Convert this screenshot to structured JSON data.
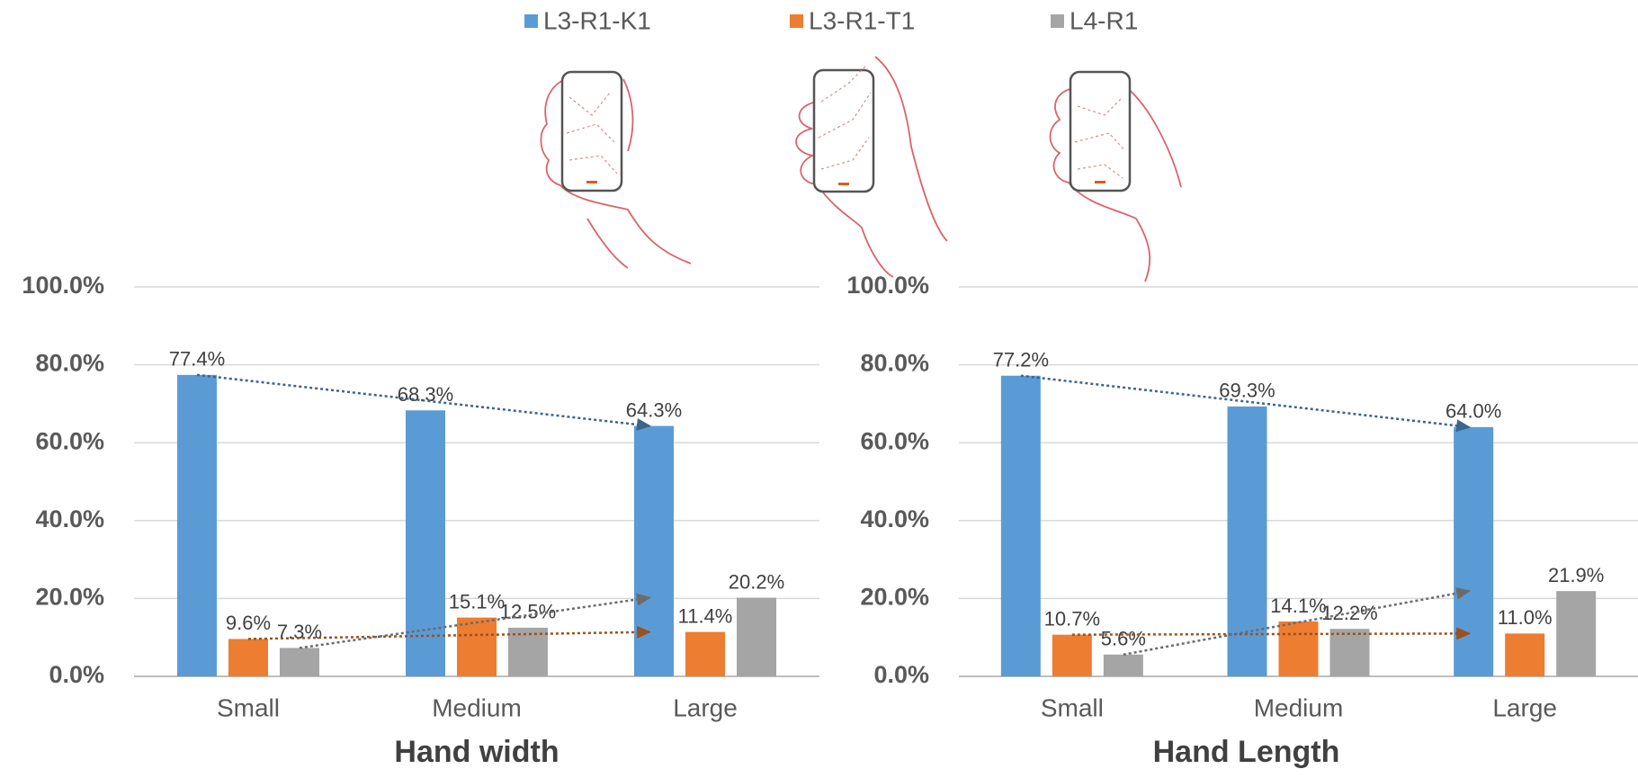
{
  "chart_data": [
    {
      "type": "bar",
      "x_label": "Hand width",
      "categories": [
        "Small",
        "Medium",
        "Large"
      ],
      "ylim": [
        0,
        100
      ],
      "yticks": [
        {
          "value": 0,
          "label": "0.0%"
        },
        {
          "value": 20,
          "label": "20.0%"
        },
        {
          "value": 40,
          "label": "40.0%"
        },
        {
          "value": 60,
          "label": "60.0%"
        },
        {
          "value": 80,
          "label": "80.0%"
        },
        {
          "value": 100,
          "label": "100.0%"
        }
      ],
      "grid": true,
      "series": [
        {
          "name": "L3-R1-K1",
          "color": "#5b9bd5",
          "values": [
            77.4,
            68.3,
            64.3
          ],
          "value_labels": [
            "77.4%",
            "68.3%",
            "64.3%"
          ]
        },
        {
          "name": "L3-R1-T1",
          "color": "#ed7d31",
          "values": [
            9.6,
            15.1,
            11.4
          ],
          "value_labels": [
            "9.6%",
            "15.1%",
            "11.4%"
          ]
        },
        {
          "name": "L4-R1",
          "color": "#a5a5a5",
          "values": [
            7.3,
            12.5,
            20.2
          ],
          "value_labels": [
            "7.3%",
            "12.5%",
            "20.2%"
          ]
        }
      ]
    },
    {
      "type": "bar",
      "x_label": "Hand Length",
      "categories": [
        "Small",
        "Medium",
        "Large"
      ],
      "ylim": [
        0,
        100
      ],
      "yticks": [
        {
          "value": 0,
          "label": "0.0%"
        },
        {
          "value": 20,
          "label": "20.0%"
        },
        {
          "value": 40,
          "label": "40.0%"
        },
        {
          "value": 60,
          "label": "60.0%"
        },
        {
          "value": 80,
          "label": "80.0%"
        },
        {
          "value": 100,
          "label": "100.0%"
        }
      ],
      "grid": true,
      "series": [
        {
          "color": "#5b9bd5",
          "values": [
            77.2,
            69.3,
            64.0
          ],
          "value_labels": [
            "77.2%",
            "69.3%",
            "64.0%"
          ]
        },
        {
          "color": "#ed7d31",
          "values": [
            10.7,
            14.1,
            11.0
          ],
          "value_labels": [
            "10.7%",
            "14.1%",
            "11.0%"
          ]
        },
        {
          "color": "#a5a5a5",
          "values": [
            5.6,
            12.2,
            21.9
          ],
          "value_labels": [
            "5.6%",
            "12.2%",
            "21.9%"
          ]
        }
      ]
    }
  ]
}
